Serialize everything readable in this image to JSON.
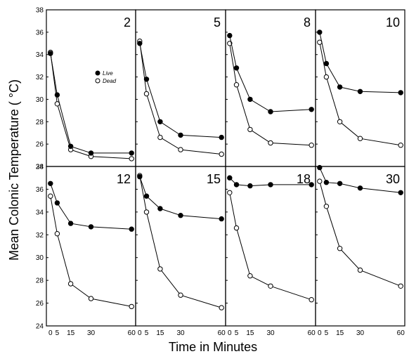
{
  "chart_data": {
    "type": "line",
    "ylabel": "Mean Colonic Temperature ( °C)",
    "xlabel": "Time in Minutes",
    "ylim": [
      24,
      38
    ],
    "yticks_top": [
      "38",
      "36",
      "34",
      "32",
      "30",
      "28",
      "26",
      "24"
    ],
    "yticks_bottom": [
      "38",
      "36",
      "34",
      "32",
      "30",
      "28",
      "26",
      "24"
    ],
    "xticks": [
      "0",
      "5",
      "15",
      "30",
      "60"
    ],
    "xtick_values": [
      0,
      5,
      15,
      30,
      60
    ],
    "xlim": [
      -3,
      63
    ],
    "legend": {
      "placement": "left-middle (panel 2)",
      "entries": [
        "Live",
        "Dead"
      ]
    },
    "panels": [
      {
        "label": "2",
        "series": [
          {
            "name": "Live",
            "marker": "filled",
            "x": [
              0,
              5,
              15,
              30,
              60
            ],
            "y": [
              34.1,
              30.4,
              25.8,
              25.2,
              25.2
            ]
          },
          {
            "name": "Dead",
            "marker": "open",
            "x": [
              0,
              5,
              15,
              30,
              60
            ],
            "y": [
              34.2,
              29.6,
              25.5,
              24.9,
              24.7
            ]
          }
        ]
      },
      {
        "label": "5",
        "series": [
          {
            "name": "Live",
            "marker": "filled",
            "x": [
              0,
              5,
              15,
              30,
              60
            ],
            "y": [
              35.0,
              31.8,
              28.0,
              26.8,
              26.6
            ]
          },
          {
            "name": "Dead",
            "marker": "open",
            "x": [
              0,
              5,
              15,
              30,
              60
            ],
            "y": [
              35.2,
              30.5,
              26.6,
              25.5,
              25.1
            ]
          }
        ]
      },
      {
        "label": "8",
        "series": [
          {
            "name": "Live",
            "marker": "filled",
            "x": [
              0,
              5,
              15,
              30,
              60
            ],
            "y": [
              35.7,
              32.8,
              30.0,
              28.9,
              29.1
            ]
          },
          {
            "name": "Dead",
            "marker": "open",
            "x": [
              0,
              5,
              15,
              30,
              60
            ],
            "y": [
              35.0,
              31.3,
              27.3,
              26.1,
              25.9
            ]
          }
        ]
      },
      {
        "label": "10",
        "series": [
          {
            "name": "Live",
            "marker": "filled",
            "x": [
              0,
              5,
              15,
              30,
              60
            ],
            "y": [
              36.0,
              33.2,
              31.1,
              30.7,
              30.6
            ]
          },
          {
            "name": "Dead",
            "marker": "open",
            "x": [
              0,
              5,
              15,
              30,
              60
            ],
            "y": [
              35.1,
              32.0,
              28.0,
              26.5,
              25.9
            ]
          }
        ]
      },
      {
        "label": "12",
        "series": [
          {
            "name": "Live",
            "marker": "filled",
            "x": [
              0,
              5,
              15,
              30,
              60
            ],
            "y": [
              36.5,
              34.8,
              33.0,
              32.7,
              32.5
            ]
          },
          {
            "name": "Dead",
            "marker": "open",
            "x": [
              0,
              5,
              15,
              30,
              60
            ],
            "y": [
              35.4,
              32.1,
              27.7,
              26.4,
              25.7
            ]
          }
        ]
      },
      {
        "label": "15",
        "series": [
          {
            "name": "Live",
            "marker": "filled",
            "x": [
              0,
              5,
              15,
              30,
              60
            ],
            "y": [
              37.1,
              35.4,
              34.3,
              33.7,
              33.4
            ]
          },
          {
            "name": "Dead",
            "marker": "open",
            "x": [
              0,
              5,
              15,
              30,
              60
            ],
            "y": [
              37.2,
              34.0,
              29.0,
              26.7,
              25.6
            ]
          }
        ]
      },
      {
        "label": "18",
        "series": [
          {
            "name": "Live",
            "marker": "filled",
            "x": [
              0,
              5,
              15,
              30,
              60
            ],
            "y": [
              37.0,
              36.4,
              36.3,
              36.4,
              36.4
            ]
          },
          {
            "name": "Dead",
            "marker": "open",
            "x": [
              0,
              5,
              15,
              30,
              60
            ],
            "y": [
              35.7,
              32.6,
              28.4,
              27.5,
              26.3
            ]
          }
        ]
      },
      {
        "label": "30",
        "series": [
          {
            "name": "Live",
            "marker": "filled",
            "x": [
              0,
              5,
              15,
              30,
              60
            ],
            "y": [
              37.9,
              36.6,
              36.5,
              36.1,
              35.7
            ]
          },
          {
            "name": "Dead",
            "marker": "open",
            "x": [
              0,
              5,
              15,
              30,
              60
            ],
            "y": [
              36.7,
              34.5,
              30.8,
              28.9,
              27.5
            ]
          }
        ]
      }
    ]
  }
}
